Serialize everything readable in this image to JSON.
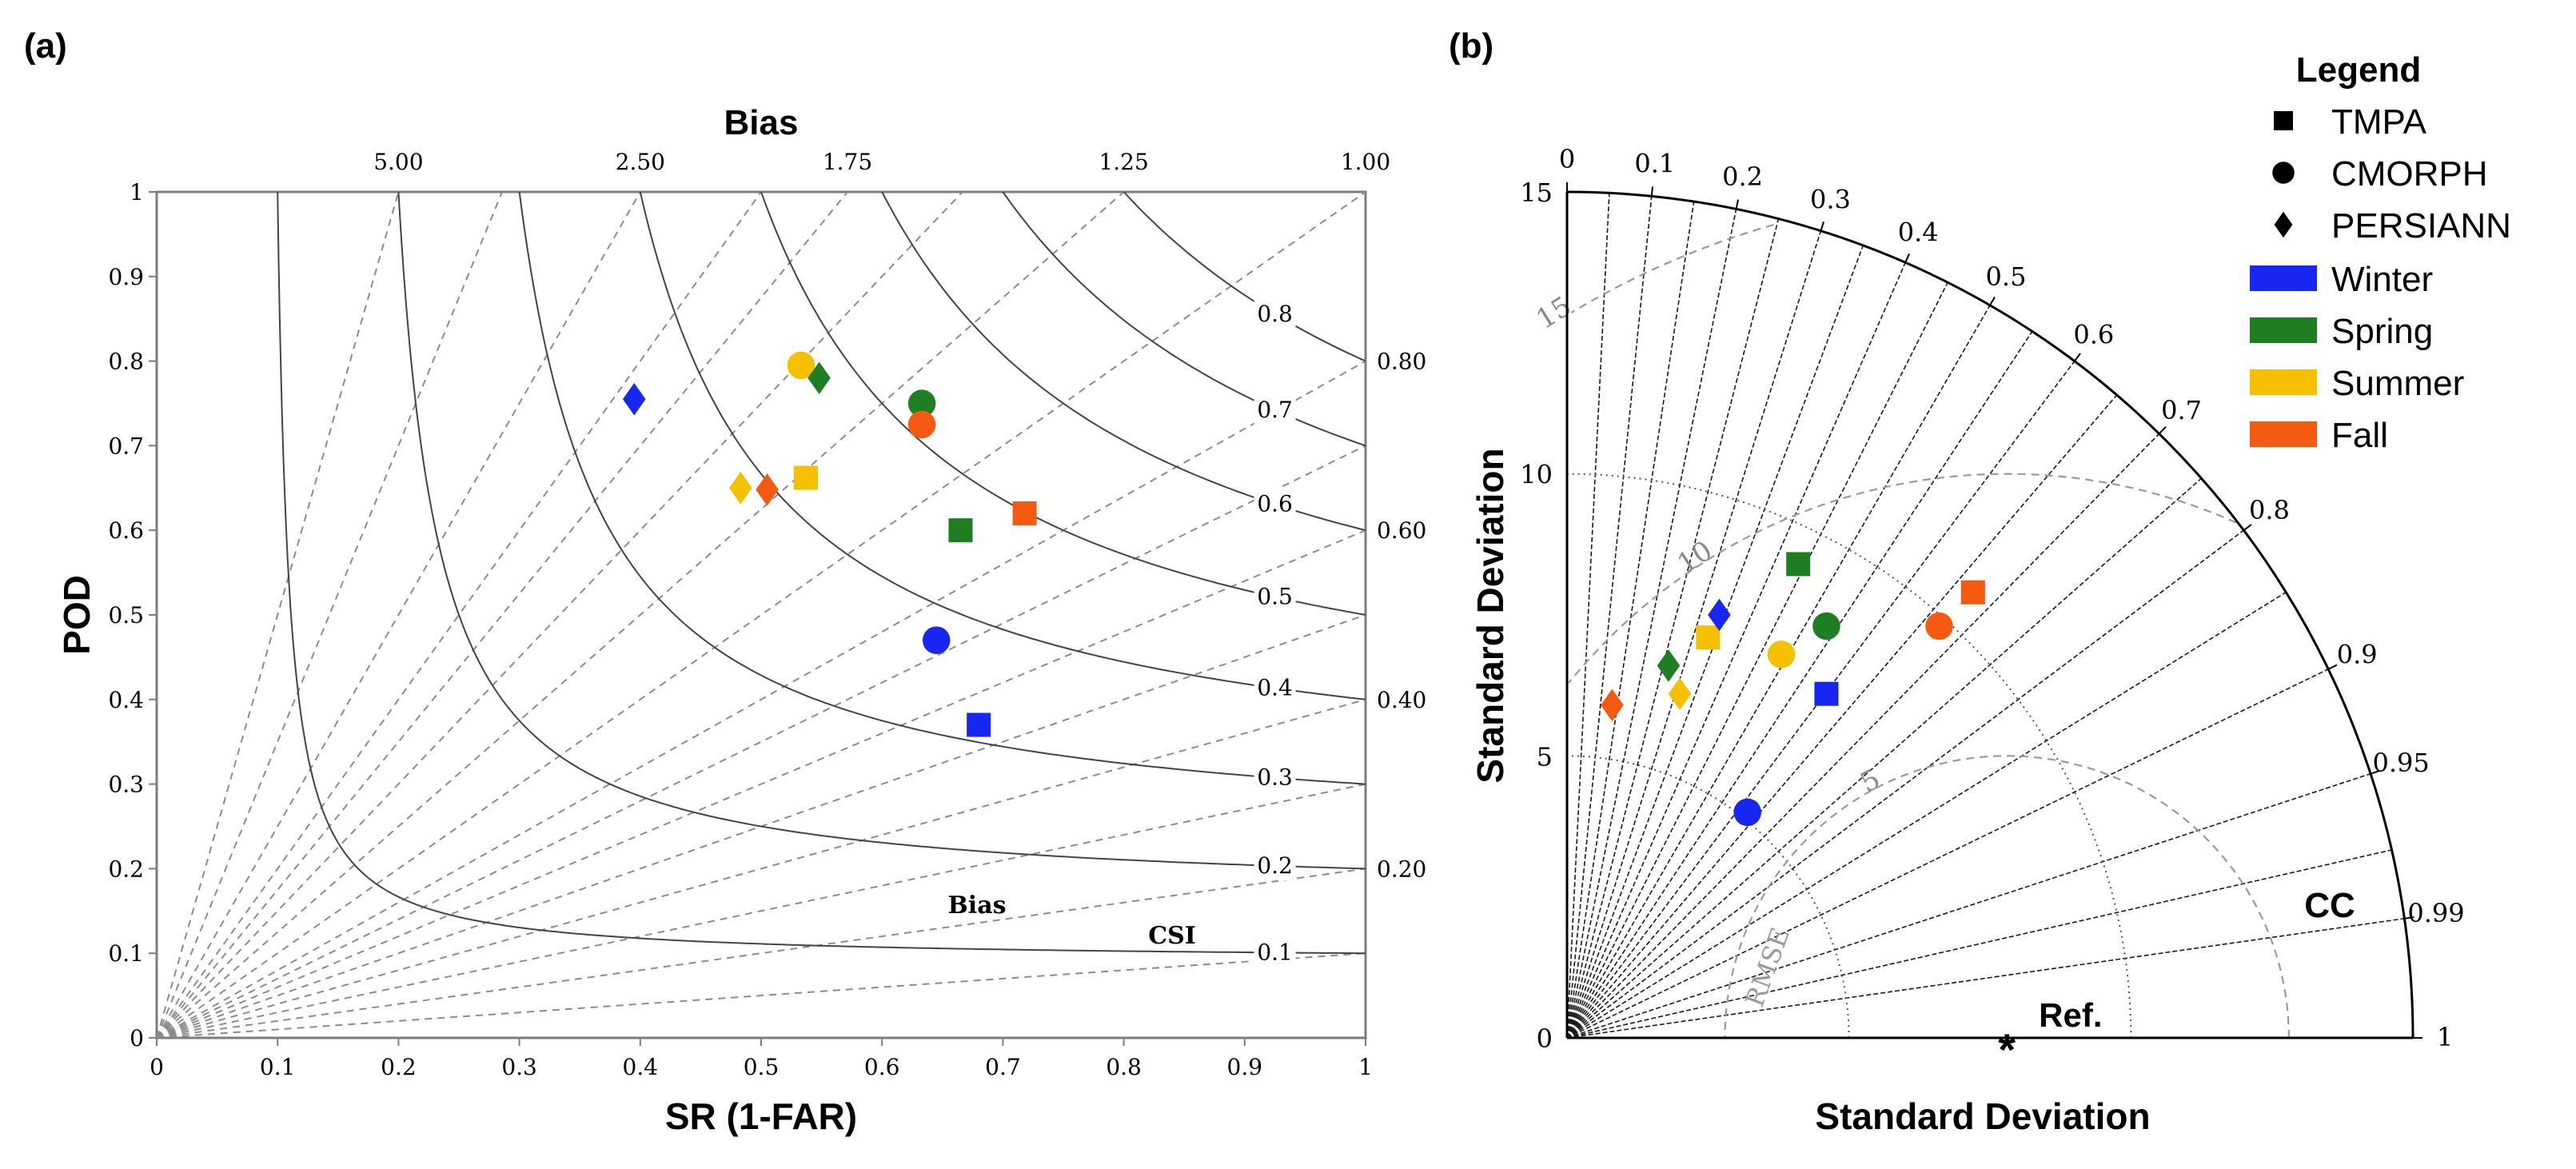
{
  "colors": {
    "Winter": "#1726f0",
    "Spring": "#1f7d22",
    "Summer": "#f5c000",
    "Fall": "#f55a12"
  },
  "chart_data": [
    {
      "type": "scatter",
      "subtype": "performance-diagram",
      "panel_label": "(a)",
      "title": "Bias",
      "xlabel": "SR (1-FAR)",
      "ylabel": "POD",
      "xlim": [
        0,
        1
      ],
      "ylim": [
        0,
        1
      ],
      "xticks": [
        "0",
        "0.1",
        "0.2",
        "0.3",
        "0.4",
        "0.5",
        "0.6",
        "0.7",
        "0.8",
        "0.9",
        "1"
      ],
      "yticks": [
        "0",
        "0.1",
        "0.2",
        "0.3",
        "0.4",
        "0.5",
        "0.6",
        "0.7",
        "0.8",
        "0.9",
        "1"
      ],
      "bias_lines": [
        {
          "value": 5.0,
          "label": "5.00",
          "position": "top"
        },
        {
          "value": 2.5,
          "label": "2.50",
          "position": "top"
        },
        {
          "value": 1.75,
          "label": "1.75",
          "position": "top"
        },
        {
          "value": 1.25,
          "label": "1.25",
          "position": "top"
        },
        {
          "value": 1.0,
          "label": "1.00",
          "position": "top"
        },
        {
          "value": 0.8,
          "label": "0.80",
          "position": "right"
        },
        {
          "value": 0.6,
          "label": "0.60",
          "position": "right"
        },
        {
          "value": 0.4,
          "label": "0.40",
          "position": "right"
        },
        {
          "value": 0.2,
          "label": "0.20",
          "position": "right"
        },
        {
          "value": 3.5,
          "label": "",
          "position": "none"
        },
        {
          "value": 2.0,
          "label": "",
          "position": "none"
        },
        {
          "value": 1.5,
          "label": "",
          "position": "none"
        },
        {
          "value": 0.7,
          "label": "",
          "position": "none"
        },
        {
          "value": 0.5,
          "label": "",
          "position": "none"
        },
        {
          "value": 0.3,
          "label": "",
          "position": "none"
        },
        {
          "value": 0.1,
          "label": "",
          "position": "none"
        }
      ],
      "csi_lines": [
        {
          "value": 0.1,
          "label": "0.1"
        },
        {
          "value": 0.2,
          "label": "0.2"
        },
        {
          "value": 0.3,
          "label": "0.3"
        },
        {
          "value": 0.4,
          "label": "0.4"
        },
        {
          "value": 0.5,
          "label": "0.5"
        },
        {
          "value": 0.6,
          "label": "0.6"
        },
        {
          "value": 0.7,
          "label": "0.7"
        },
        {
          "value": 0.8,
          "label": "0.8"
        }
      ],
      "annotations": {
        "bias": "Bias",
        "csi": "CSI"
      },
      "points": [
        {
          "product": "TMPA",
          "season": "Winter",
          "sr": 0.68,
          "pod": 0.37
        },
        {
          "product": "TMPA",
          "season": "Spring",
          "sr": 0.665,
          "pod": 0.6
        },
        {
          "product": "TMPA",
          "season": "Summer",
          "sr": 0.537,
          "pod": 0.662
        },
        {
          "product": "TMPA",
          "season": "Fall",
          "sr": 0.718,
          "pod": 0.62
        },
        {
          "product": "CMORPH",
          "season": "Winter",
          "sr": 0.645,
          "pod": 0.47
        },
        {
          "product": "CMORPH",
          "season": "Spring",
          "sr": 0.633,
          "pod": 0.75
        },
        {
          "product": "CMORPH",
          "season": "Summer",
          "sr": 0.533,
          "pod": 0.795
        },
        {
          "product": "CMORPH",
          "season": "Fall",
          "sr": 0.633,
          "pod": 0.725
        },
        {
          "product": "PERSIANN",
          "season": "Winter",
          "sr": 0.395,
          "pod": 0.755
        },
        {
          "product": "PERSIANN",
          "season": "Spring",
          "sr": 0.548,
          "pod": 0.78
        },
        {
          "product": "PERSIANN",
          "season": "Summer",
          "sr": 0.483,
          "pod": 0.65
        },
        {
          "product": "PERSIANN",
          "season": "Fall",
          "sr": 0.505,
          "pod": 0.648
        }
      ]
    },
    {
      "type": "scatter",
      "subtype": "taylor-diagram",
      "panel_label": "(b)",
      "xlabel": "Standard Deviation",
      "ylabel": "Standard Deviation",
      "std_max": 15,
      "std_ticks": [
        "0",
        "5",
        "10",
        "15"
      ],
      "cc_label": "CC",
      "cc_ticks": [
        {
          "value": 0,
          "label": "0"
        },
        {
          "value": 0.1,
          "label": "0.1"
        },
        {
          "value": 0.2,
          "label": "0.2"
        },
        {
          "value": 0.3,
          "label": "0.3"
        },
        {
          "value": 0.4,
          "label": "0.4"
        },
        {
          "value": 0.5,
          "label": "0.5"
        },
        {
          "value": 0.6,
          "label": "0.6"
        },
        {
          "value": 0.7,
          "label": "0.7"
        },
        {
          "value": 0.8,
          "label": "0.8"
        },
        {
          "value": 0.9,
          "label": "0.9"
        },
        {
          "value": 0.95,
          "label": "0.95"
        },
        {
          "value": 0.99,
          "label": "0.99"
        },
        {
          "value": 1,
          "label": "1"
        }
      ],
      "cc_minor": [
        0.05,
        0.15,
        0.25,
        0.35,
        0.45,
        0.55,
        0.65,
        0.75,
        0.85,
        0.975
      ],
      "std_arcs": [
        5,
        10
      ],
      "rmse_label": "RMSE",
      "rmse_arcs": [
        {
          "value": 5,
          "label": "5"
        },
        {
          "value": 10,
          "label": "10"
        },
        {
          "value": 15,
          "label": "15"
        }
      ],
      "reference": {
        "label": "Ref.",
        "std": 7.8
      },
      "points": [
        {
          "product": "TMPA",
          "season": "Winter",
          "x": 4.6,
          "y": 6.1
        },
        {
          "product": "TMPA",
          "season": "Spring",
          "x": 4.1,
          "y": 8.4
        },
        {
          "product": "TMPA",
          "season": "Summer",
          "x": 2.5,
          "y": 7.1
        },
        {
          "product": "TMPA",
          "season": "Fall",
          "x": 7.2,
          "y": 7.9
        },
        {
          "product": "CMORPH",
          "season": "Winter",
          "x": 3.2,
          "y": 4.0
        },
        {
          "product": "CMORPH",
          "season": "Spring",
          "x": 4.6,
          "y": 7.3
        },
        {
          "product": "CMORPH",
          "season": "Summer",
          "x": 3.8,
          "y": 6.8
        },
        {
          "product": "CMORPH",
          "season": "Fall",
          "x": 6.6,
          "y": 7.3
        },
        {
          "product": "PERSIANN",
          "season": "Winter",
          "x": 2.7,
          "y": 7.5
        },
        {
          "product": "PERSIANN",
          "season": "Spring",
          "x": 1.8,
          "y": 6.6
        },
        {
          "product": "PERSIANN",
          "season": "Summer",
          "x": 2.0,
          "y": 6.1
        },
        {
          "product": "PERSIANN",
          "season": "Fall",
          "x": 0.8,
          "y": 5.9
        }
      ]
    }
  ],
  "legend": {
    "title": "Legend",
    "products": [
      {
        "name": "TMPA",
        "marker": "square"
      },
      {
        "name": "CMORPH",
        "marker": "circle"
      },
      {
        "name": "PERSIANN",
        "marker": "diamond"
      }
    ],
    "seasons": [
      {
        "name": "Winter",
        "color": "#1726f0"
      },
      {
        "name": "Spring",
        "color": "#1f7d22"
      },
      {
        "name": "Summer",
        "color": "#f5c000"
      },
      {
        "name": "Fall",
        "color": "#f55a12"
      }
    ]
  }
}
